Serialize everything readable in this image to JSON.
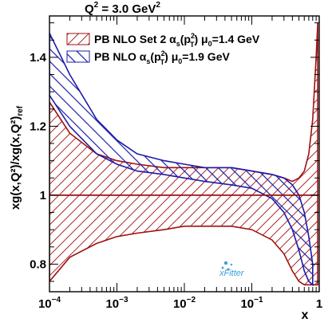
{
  "chart_data": {
    "type": "area",
    "title": "",
    "header": {
      "main": "Q",
      "sup": "2",
      "rest": " = 3.0 GeV",
      "sup2": "2"
    },
    "ylabel": "xg(x,Q²)/xg(x,Q²)",
    "ylabel_sub": "ref",
    "xlabel": "x",
    "x_scale": "log",
    "xlim": [
      0.0001,
      1
    ],
    "ylim": [
      0.72,
      1.52
    ],
    "x_ticks": [
      {
        "value": 0.0001,
        "base": "10",
        "exp": "−4"
      },
      {
        "value": 0.001,
        "base": "10",
        "exp": "−3"
      },
      {
        "value": 0.01,
        "base": "10",
        "exp": "−2"
      },
      {
        "value": 0.1,
        "base": "10",
        "exp": "−1"
      },
      {
        "value": 1,
        "base": "1",
        "exp": ""
      }
    ],
    "y_ticks": [
      {
        "value": 0.8,
        "label": "0.8"
      },
      {
        "value": 1.0,
        "label": "1"
      },
      {
        "value": 1.2,
        "label": "1.2"
      },
      {
        "value": 1.4,
        "label": "1.4"
      }
    ],
    "legend_position": "top-left",
    "watermark": "xFitter",
    "series": [
      {
        "name": "PB NLO Set 2 αs(p²T) μ0=1.4 GeV",
        "legend": {
          "pre": "PB NLO Set 2 α",
          "sub": "s",
          "mid": "(p",
          "sup": "2",
          "sub2": "T",
          "post": ") μ",
          "sub3": "0",
          "tail": "=1.4 GeV"
        },
        "color": "#a01010",
        "hatch": "forward",
        "x": [
          0.0001,
          0.0002,
          0.0005,
          0.001,
          0.002,
          0.005,
          0.01,
          0.02,
          0.05,
          0.1,
          0.2,
          0.3,
          0.4,
          0.5,
          0.6,
          0.7,
          0.8,
          0.9,
          0.95
        ],
        "lower": [
          0.75,
          0.82,
          0.86,
          0.88,
          0.89,
          0.9,
          0.91,
          0.91,
          0.91,
          0.9,
          0.87,
          0.83,
          0.78,
          0.75,
          0.74,
          0.74,
          0.74,
          0.74,
          0.74
        ],
        "upper": [
          1.27,
          1.18,
          1.12,
          1.1,
          1.09,
          1.08,
          1.08,
          1.08,
          1.08,
          1.07,
          1.06,
          1.05,
          1.04,
          1.05,
          1.07,
          1.12,
          1.22,
          1.4,
          1.5
        ],
        "central": [
          1,
          1,
          1,
          1,
          1,
          1,
          1,
          1,
          1,
          1,
          1,
          1,
          1,
          1,
          1,
          1,
          1,
          1,
          1
        ]
      },
      {
        "name": "PB NLO αs(p²T) μ0=1.9 GeV",
        "legend": {
          "pre": "PB NLO α",
          "sub": "s",
          "mid": "(p",
          "sup": "2",
          "sub2": "T",
          "post": ") μ",
          "sub3": "0",
          "tail": "=1.9 GeV"
        },
        "color": "#1c1ca8",
        "hatch": "backward",
        "x": [
          0.0001,
          0.0002,
          0.0005,
          0.001,
          0.002,
          0.005,
          0.01,
          0.02,
          0.05,
          0.1,
          0.2,
          0.3,
          0.4,
          0.5,
          0.6,
          0.7,
          0.8
        ],
        "lower": [
          1.29,
          1.2,
          1.12,
          1.09,
          1.07,
          1.06,
          1.05,
          1.04,
          1.03,
          1.02,
          0.99,
          0.95,
          0.9,
          0.84,
          0.78,
          0.75,
          0.74
        ],
        "upper": [
          1.47,
          1.35,
          1.22,
          1.16,
          1.12,
          1.1,
          1.09,
          1.08,
          1.08,
          1.07,
          1.06,
          1.05,
          1.03,
          1.0,
          0.95,
          0.88,
          0.8
        ]
      }
    ]
  }
}
